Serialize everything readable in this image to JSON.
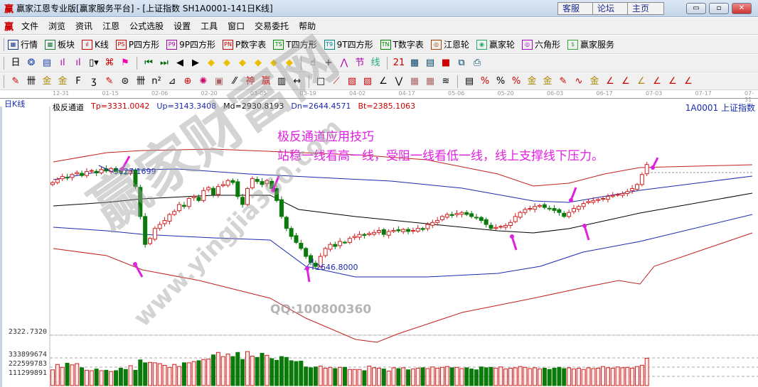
{
  "window": {
    "logo": "赢",
    "title": "赢家江恩专业版[赢家服务平台] - [上证指数  SH1A0001-141日K线]",
    "buttons": [
      "客服",
      "论坛",
      "主页"
    ]
  },
  "menu": [
    "文件",
    "浏览",
    "资讯",
    "江恩",
    "公式选股",
    "设置",
    "工具",
    "窗口",
    "交易委托",
    "帮助"
  ],
  "toolbar1": [
    {
      "icon": "table-icon",
      "glyph": "▦",
      "color": "#1a3a8c",
      "label": "行情"
    },
    {
      "icon": "blocks-icon",
      "glyph": "▩",
      "color": "#1a7a3a",
      "label": "板块"
    },
    {
      "icon": "kline-icon",
      "glyph": "ıl",
      "color": "#c00",
      "label": "K线"
    },
    {
      "icon": "ps-icon",
      "glyph": "PS",
      "color": "#c00",
      "label": "P四方形"
    },
    {
      "icon": "p9-icon",
      "glyph": "P9",
      "color": "#a0a",
      "label": "9P四方形"
    },
    {
      "icon": "pn-icon",
      "glyph": "PN",
      "color": "#c00",
      "label": "P数字表"
    },
    {
      "icon": "ts-icon",
      "glyph": "TS",
      "color": "#080",
      "label": "T四方形"
    },
    {
      "icon": "t9-icon",
      "glyph": "T9",
      "color": "#088",
      "label": "9T四方形"
    },
    {
      "icon": "tn-icon",
      "glyph": "TN",
      "color": "#080",
      "label": "T数字表"
    },
    {
      "icon": "gann-wheel-icon",
      "glyph": "◎",
      "color": "#a40",
      "label": "江恩轮"
    },
    {
      "icon": "yingjia-wheel-icon",
      "glyph": "◉",
      "color": "#2a6",
      "label": "赢家轮"
    },
    {
      "icon": "hexagon-icon",
      "glyph": "◎",
      "color": "#a0c",
      "label": "六角形"
    },
    {
      "icon": "dollar-icon",
      "glyph": "$",
      "color": "#3a3",
      "label": "赢家服务"
    }
  ],
  "toolbar2": [
    {
      "icon": "period-dropdown",
      "glyph": "日▾",
      "color": "#000"
    },
    {
      "icon": "indicator-icon",
      "glyph": "❂",
      "color": "#24a"
    },
    {
      "icon": "notes-icon",
      "glyph": "▤",
      "color": "#24a"
    },
    {
      "icon": "bars3-icon",
      "glyph": "ıl",
      "color": "#a0a"
    },
    {
      "icon": "bars9-icon",
      "glyph": "ıl",
      "color": "#a0a"
    },
    {
      "icon": "candle-dropdown",
      "glyph": "▯▾",
      "color": "#000"
    },
    {
      "icon": "pattern-icon",
      "glyph": "⌘",
      "color": "#c00"
    },
    {
      "icon": "flag-icon",
      "glyph": "⚑",
      "color": "#e0a"
    },
    {
      "icon": "first-icon",
      "glyph": "⏮",
      "color": "#060"
    },
    {
      "icon": "last-icon",
      "glyph": "⏭",
      "color": "#060"
    },
    {
      "icon": "left-icon",
      "glyph": "◀",
      "color": "#000"
    },
    {
      "icon": "right-icon",
      "glyph": "▶",
      "color": "#000"
    },
    {
      "icon": "diamond-left-icon",
      "glyph": "◆",
      "color": "#e8c000"
    },
    {
      "icon": "diamond-right-icon",
      "glyph": "◆",
      "color": "#e8c000"
    },
    {
      "icon": "diamond-h-icon",
      "glyph": "◆",
      "color": "#e8c000"
    },
    {
      "icon": "diamond-x-icon",
      "glyph": "◆",
      "color": "#e8c000"
    },
    {
      "icon": "diamond-star-icon",
      "glyph": "◆",
      "color": "#e8c000"
    },
    {
      "icon": "diamond-v-icon",
      "glyph": "◆",
      "color": "#e8c000"
    },
    {
      "icon": "hand-icon",
      "glyph": "☝",
      "color": "#000"
    },
    {
      "icon": "crosshair-icon",
      "glyph": "+",
      "color": "#000"
    },
    {
      "icon": "line-icon",
      "glyph": "⋀",
      "color": "#a0a"
    },
    {
      "icon": "node-icon",
      "glyph": "节",
      "color": "#a0a"
    },
    {
      "icon": "wave-icon",
      "glyph": "线",
      "color": "#2a8"
    },
    {
      "icon": "calendar-icon",
      "glyph": "21",
      "color": "#c00"
    },
    {
      "icon": "calculator-icon",
      "glyph": "▦",
      "color": "#046"
    },
    {
      "icon": "report-icon",
      "glyph": "▤",
      "color": "#046"
    },
    {
      "icon": "save-icon",
      "glyph": "■",
      "color": "#c00"
    },
    {
      "icon": "network-icon",
      "glyph": "⧉",
      "color": "#046"
    },
    {
      "icon": "printer-icon",
      "glyph": "⎙",
      "color": "#046"
    }
  ],
  "toolbar3": [
    {
      "icon": "pen-icon",
      "glyph": "✎",
      "color": "#c00"
    },
    {
      "icon": "grid-lines-icon",
      "glyph": "卌",
      "color": "#000"
    },
    {
      "icon": "gold1-icon",
      "glyph": "金",
      "color": "#a80"
    },
    {
      "icon": "gold2-icon",
      "glyph": "金",
      "color": "#a80"
    },
    {
      "icon": "f-lines-icon",
      "glyph": "F",
      "color": "#000"
    },
    {
      "icon": "spiral-icon",
      "glyph": "ʒ",
      "color": "#000"
    },
    {
      "icon": "rocket-icon",
      "glyph": "✎",
      "color": "#c00"
    },
    {
      "icon": "circle-scale-icon",
      "glyph": "⊜",
      "color": "#000"
    },
    {
      "icon": "vlines-icon",
      "glyph": "卌",
      "color": "#000"
    },
    {
      "icon": "n2-icon",
      "glyph": "n²",
      "color": "#000"
    },
    {
      "icon": "triangle-icon",
      "glyph": "⊿",
      "color": "#000"
    },
    {
      "icon": "target-icon",
      "glyph": "⊕",
      "color": "#c00"
    },
    {
      "icon": "star-icon",
      "glyph": "✺",
      "color": "#c06"
    },
    {
      "icon": "square-icon",
      "glyph": "▣",
      "color": "#a66"
    },
    {
      "icon": "slant-icon",
      "glyph": "⁄⁄",
      "color": "#000"
    },
    {
      "icon": "god-icon",
      "glyph": "神",
      "color": "#c00"
    },
    {
      "icon": "ying-icon",
      "glyph": "赢",
      "color": "#c00"
    },
    {
      "icon": "ruler-icon",
      "glyph": "▥",
      "color": "#000"
    },
    {
      "icon": "span-icon",
      "glyph": "↔",
      "color": "#000"
    },
    {
      "icon": "box-icon",
      "glyph": "□",
      "color": "#000"
    },
    {
      "icon": "fan-icon",
      "glyph": "⟋",
      "color": "#c00"
    },
    {
      "icon": "fan-box-icon",
      "glyph": "▧",
      "color": "#c00"
    },
    {
      "icon": "fan-box2-icon",
      "glyph": "▧",
      "color": "#c00"
    },
    {
      "icon": "angle-icon",
      "glyph": "∠",
      "color": "#000"
    },
    {
      "icon": "zigzag-icon",
      "glyph": "⋁",
      "color": "#000"
    },
    {
      "icon": "grid-icon",
      "glyph": "▦",
      "color": "#a66"
    },
    {
      "icon": "grid2-icon",
      "glyph": "▦",
      "color": "#a66"
    },
    {
      "icon": "parallel-icon",
      "glyph": "≋",
      "color": "#000"
    },
    {
      "icon": "cal-icon",
      "glyph": "▤",
      "color": "#000"
    },
    {
      "icon": "pct-red-icon",
      "glyph": "%",
      "color": "#c00"
    },
    {
      "icon": "pct-icon",
      "glyph": "%",
      "color": "#000"
    },
    {
      "icon": "pct-lines-icon",
      "glyph": "%",
      "color": "#c00"
    },
    {
      "icon": "gold-circle-icon",
      "glyph": "金",
      "color": "#a80"
    },
    {
      "icon": "gold-lines-icon",
      "glyph": "金",
      "color": "#a80"
    },
    {
      "icon": "rocket2-icon",
      "glyph": "✎",
      "color": "#c00"
    },
    {
      "icon": "wave-box-icon",
      "glyph": "∿",
      "color": "#c00"
    },
    {
      "icon": "gold-box-icon",
      "glyph": "金",
      "color": "#a80"
    },
    {
      "icon": "j-angle-icon",
      "glyph": "∠",
      "color": "#c00"
    },
    {
      "icon": "f-angle-icon",
      "glyph": "∠",
      "color": "#c00"
    },
    {
      "icon": "gold-angle-icon",
      "glyph": "∠",
      "color": "#a80"
    },
    {
      "icon": "god-angle-icon",
      "glyph": "∠",
      "color": "#c00"
    },
    {
      "icon": "ying-angle-icon",
      "glyph": "∠",
      "color": "#c00"
    },
    {
      "icon": "four-angle-icon",
      "glyph": "∠",
      "color": "#c00"
    }
  ],
  "dates": [
    "12-31",
    "01-15",
    "02-06",
    "02-20",
    "03-05",
    "03-19",
    "04-02",
    "04-17",
    "05-06",
    "05-20",
    "06-03",
    "06-17",
    "07-03",
    "07-17",
    "07-31"
  ],
  "period_label": "日K线",
  "indicator": {
    "name": "极反通道",
    "tp": "Tp=3331.0042",
    "up": "Up=3143.3408",
    "md": "Md=2930.8193",
    "dn": "Dn=2644.4571",
    "bt": "Bt=2385.1063"
  },
  "symbol": "1A0001  上证指数",
  "annotation": {
    "line1": "极反通道应用技巧",
    "line2": "站稳一线看高一线，受阻一线看低一线，线上支撑线下压力。"
  },
  "watermark": {
    "logo": "赢家财富网",
    "url": "www.yingjia360.com",
    "qq": "QQ:100800360"
  },
  "chart_data": {
    "type": "candlestick",
    "price_labels": {
      "high": "3127.1699",
      "low": "2646.8000",
      "extra": "2322.7320"
    },
    "volume_ticks": [
      "333899674",
      "222599783",
      "111299891"
    ],
    "colors": {
      "up": "#d02020",
      "down": "#0a7a0a",
      "upper_band": "#1a2ab0",
      "middle": "#000000",
      "outer": "#c02020",
      "annotation": "#e020e0"
    },
    "close": [
      3070,
      3085,
      3100,
      3095,
      3110,
      3120,
      3105,
      3125,
      3130,
      3118,
      3135,
      3128,
      3140,
      3125,
      3120,
      3115,
      3127,
      3050,
      2900,
      2760,
      2790,
      2840,
      2860,
      2880,
      2910,
      2925,
      2960,
      2950,
      2990,
      3000,
      2980,
      3030,
      3045,
      3010,
      3050,
      3060,
      3080,
      3070,
      3000,
      2960,
      3040,
      3090,
      3075,
      3060,
      3080,
      3040,
      2980,
      2900,
      2840,
      2800,
      2770,
      2740,
      2700,
      2670,
      2650,
      2700,
      2740,
      2760,
      2750,
      2775,
      2770,
      2790,
      2800,
      2810,
      2805,
      2815,
      2820,
      2830,
      2810,
      2825,
      2830,
      2828,
      2835,
      2825,
      2830,
      2840,
      2835,
      2860,
      2870,
      2880,
      2900,
      2910,
      2905,
      2915,
      2920,
      2910,
      2900,
      2895,
      2880,
      2860,
      2840,
      2845,
      2850,
      2855,
      2870,
      2900,
      2920,
      2935,
      2940,
      2950,
      2955,
      2945,
      2940,
      2930,
      2920,
      2900,
      2920,
      2940,
      2950,
      2965,
      2975,
      2980,
      2985,
      2990,
      3000,
      3005,
      3010,
      3015,
      3025,
      3040,
      3060,
      3110,
      3160
    ],
    "volume_millions": [
      190,
      255,
      220,
      270,
      250,
      265,
      215,
      185,
      180,
      200,
      180,
      185,
      170,
      180,
      210,
      195,
      240,
      185,
      310,
      275,
      280,
      275,
      265,
      245,
      220,
      255,
      230,
      275,
      275,
      290,
      300,
      315,
      320,
      370,
      400,
      350,
      380,
      350,
      400,
      315,
      410,
      355,
      340,
      390,
      365,
      325,
      305,
      350,
      340,
      300,
      290,
      295,
      225,
      215,
      225,
      235,
      210,
      220,
      205,
      220,
      220,
      195,
      195,
      195,
      180,
      235,
      215,
      210,
      200,
      175,
      215,
      205,
      215,
      190,
      200,
      210,
      215,
      205,
      225,
      210,
      220,
      230,
      215,
      220,
      205,
      215,
      200,
      190,
      225,
      215,
      220,
      210,
      225,
      200,
      210,
      215,
      230,
      220,
      205,
      215,
      200,
      210,
      195,
      210,
      220,
      205,
      215,
      200,
      210,
      195,
      215,
      205,
      210,
      230,
      215,
      210,
      225,
      215,
      220,
      210,
      230,
      245,
      330
    ]
  }
}
